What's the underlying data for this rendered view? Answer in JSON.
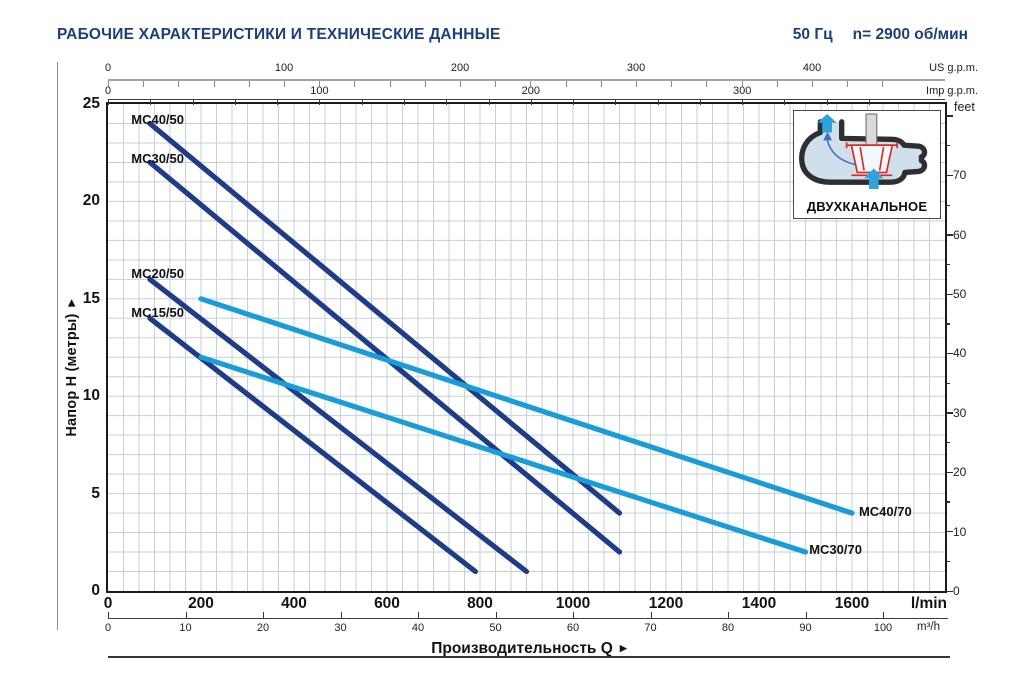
{
  "header": {
    "title": "РАБОЧИЕ ХАРАКТЕРИСТИКИ И ТЕХНИЧЕСКИЕ ДАННЫЕ",
    "frequency": "50 Гц",
    "speed": "n= 2900 об/мин",
    "accent_color": "#1b3e7d"
  },
  "glyphs": {
    "axis_arrow": "▶"
  },
  "chart_data": {
    "type": "line",
    "x_title": "Производительность Q",
    "x_range_lmin": [
      0,
      1800
    ],
    "y_range_m": [
      0,
      25
    ],
    "grid": {
      "v_step_m3h": 2,
      "h_step_m": 1,
      "color": "#c9cfd5",
      "on": true
    },
    "x_axes": [
      {
        "id": "us_gpm",
        "unit": "US g.p.m.",
        "side": "top",
        "labels": [
          0,
          100,
          200,
          300,
          400
        ],
        "tick_step": 20,
        "tick_max": 440,
        "lmin_per_unit": 3.78541
      },
      {
        "id": "imp_gpm",
        "unit": "Imp g.p.m.",
        "side": "top",
        "labels": [
          0,
          100,
          200,
          300
        ],
        "tick_step": 20,
        "tick_max": 360,
        "lmin_per_unit": 4.54609
      },
      {
        "id": "lmin",
        "unit": "l/min",
        "side": "bottom",
        "labels": [
          0,
          200,
          400,
          600,
          800,
          1000,
          1200,
          1400,
          1600
        ],
        "lmin_per_unit": 1
      },
      {
        "id": "m3h",
        "unit": "m³/h",
        "side": "bottom",
        "labels": [
          0,
          10,
          20,
          30,
          40,
          50,
          60,
          70,
          80,
          90,
          100
        ],
        "lmin_per_unit": 16.6667
      }
    ],
    "y_axes": [
      {
        "id": "meters",
        "label": "Напор H (метры)",
        "labels": [
          0,
          5,
          10,
          15,
          20,
          25
        ],
        "max": 25
      },
      {
        "id": "feet",
        "unit": "feet",
        "labels": [
          0,
          10,
          20,
          30,
          40,
          50,
          60,
          70
        ],
        "tick_step": 5,
        "tick_max": 80,
        "m_per_unit": 0.3048
      }
    ],
    "series": [
      {
        "name": "MC40/50",
        "color": "#1e3c88",
        "points_lmin_m": [
          [
            90,
            24
          ],
          [
            1100,
            4
          ]
        ],
        "label_anchor": {
          "lmin": 50,
          "m": 24.6
        }
      },
      {
        "name": "MC30/50",
        "color": "#1e3c88",
        "points_lmin_m": [
          [
            90,
            22
          ],
          [
            1100,
            2
          ]
        ],
        "label_anchor": {
          "lmin": 50,
          "m": 22.6
        }
      },
      {
        "name": "MC20/50",
        "color": "#1e3c88",
        "points_lmin_m": [
          [
            90,
            16
          ],
          [
            900,
            1
          ]
        ],
        "label_anchor": {
          "lmin": 50,
          "m": 16.7
        }
      },
      {
        "name": "MC15/50",
        "color": "#1e3c88",
        "points_lmin_m": [
          [
            90,
            14
          ],
          [
            790,
            1
          ]
        ],
        "label_anchor": {
          "lmin": 50,
          "m": 14.7
        }
      },
      {
        "name": "MC40/70",
        "color": "#199dd9",
        "points_lmin_m": [
          [
            200,
            15
          ],
          [
            1600,
            4
          ]
        ],
        "label_anchor": {
          "lmin": 1615,
          "m": 4.45
        }
      },
      {
        "name": "MC30/70",
        "color": "#199dd9",
        "points_lmin_m": [
          [
            200,
            12
          ],
          [
            1500,
            2
          ]
        ],
        "label_anchor": {
          "lmin": 1508,
          "m": 2.5
        }
      }
    ]
  },
  "inset": {
    "label": "ДВУХКАНАЛЬНОЕ",
    "impeller_color": "#dd2626",
    "flow_color": "#2ea4de",
    "casing_fill": "#cfe0ea",
    "casing_stroke": "#2d2f31"
  }
}
